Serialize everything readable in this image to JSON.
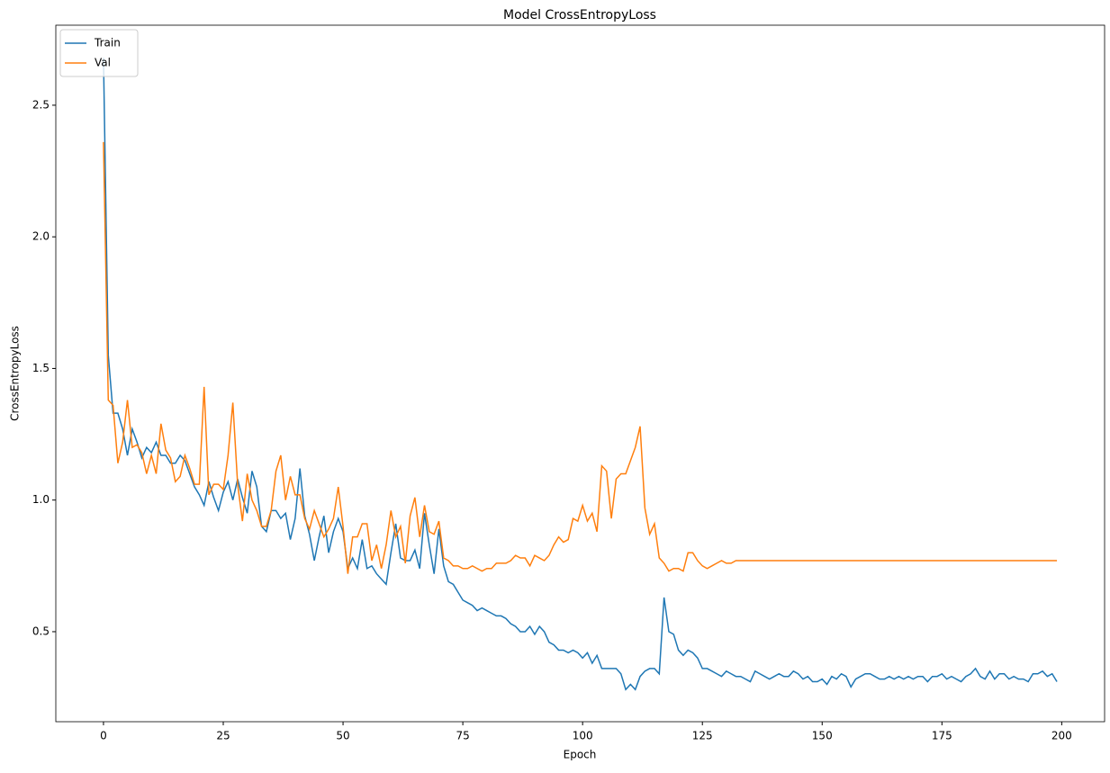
{
  "chart_data": {
    "type": "line",
    "title": "Model CrossEntropyLoss",
    "x_label": "Epoch",
    "y_label": "CrossEntropyLoss",
    "x": [
      0,
      1,
      2,
      3,
      4,
      5,
      6,
      7,
      8,
      9,
      10,
      11,
      12,
      13,
      14,
      15,
      16,
      17,
      18,
      19,
      20,
      21,
      22,
      23,
      24,
      25,
      26,
      27,
      28,
      29,
      30,
      31,
      32,
      33,
      34,
      35,
      36,
      37,
      38,
      39,
      40,
      41,
      42,
      43,
      44,
      45,
      46,
      47,
      48,
      49,
      50,
      51,
      52,
      53,
      54,
      55,
      56,
      57,
      58,
      59,
      60,
      61,
      62,
      63,
      64,
      65,
      66,
      67,
      68,
      69,
      70,
      71,
      72,
      73,
      74,
      75,
      76,
      77,
      78,
      79,
      80,
      81,
      82,
      83,
      84,
      85,
      86,
      87,
      88,
      89,
      90,
      91,
      92,
      93,
      94,
      95,
      96,
      97,
      98,
      99,
      100,
      101,
      102,
      103,
      104,
      105,
      106,
      107,
      108,
      109,
      110,
      111,
      112,
      113,
      114,
      115,
      116,
      117,
      118,
      119,
      120,
      121,
      122,
      123,
      124,
      125,
      126,
      127,
      128,
      129,
      130,
      131,
      132,
      133,
      134,
      135,
      136,
      137,
      138,
      139,
      140,
      141,
      142,
      143,
      144,
      145,
      146,
      147,
      148,
      149,
      150,
      151,
      152,
      153,
      154,
      155,
      156,
      157,
      158,
      159,
      160,
      161,
      162,
      163,
      164,
      165,
      166,
      167,
      168,
      169,
      170,
      171,
      172,
      173,
      174,
      175,
      176,
      177,
      178,
      179,
      180,
      181,
      182,
      183,
      184,
      185,
      186,
      187,
      188,
      189,
      190,
      191,
      192,
      193,
      194,
      195,
      196,
      197,
      198,
      199
    ],
    "series": [
      {
        "name": "Train",
        "color": "#1f77b4",
        "values": [
          2.68,
          1.55,
          1.33,
          1.33,
          1.27,
          1.17,
          1.27,
          1.22,
          1.16,
          1.2,
          1.18,
          1.22,
          1.17,
          1.17,
          1.14,
          1.14,
          1.17,
          1.15,
          1.1,
          1.05,
          1.02,
          0.98,
          1.07,
          1.01,
          0.96,
          1.03,
          1.07,
          1.0,
          1.08,
          1.01,
          0.95,
          1.11,
          1.05,
          0.9,
          0.88,
          0.96,
          0.96,
          0.93,
          0.95,
          0.85,
          0.93,
          1.12,
          0.94,
          0.87,
          0.77,
          0.86,
          0.94,
          0.8,
          0.88,
          0.93,
          0.88,
          0.74,
          0.78,
          0.74,
          0.85,
          0.74,
          0.75,
          0.72,
          0.7,
          0.68,
          0.8,
          0.91,
          0.78,
          0.77,
          0.77,
          0.81,
          0.74,
          0.95,
          0.83,
          0.72,
          0.89,
          0.75,
          0.69,
          0.68,
          0.65,
          0.62,
          0.61,
          0.6,
          0.58,
          0.59,
          0.58,
          0.57,
          0.56,
          0.56,
          0.55,
          0.53,
          0.52,
          0.5,
          0.5,
          0.52,
          0.49,
          0.52,
          0.5,
          0.46,
          0.45,
          0.43,
          0.43,
          0.42,
          0.43,
          0.42,
          0.4,
          0.42,
          0.38,
          0.41,
          0.36,
          0.36,
          0.36,
          0.36,
          0.34,
          0.28,
          0.3,
          0.28,
          0.33,
          0.35,
          0.36,
          0.36,
          0.34,
          0.63,
          0.5,
          0.49,
          0.43,
          0.41,
          0.43,
          0.42,
          0.4,
          0.36,
          0.36,
          0.35,
          0.34,
          0.33,
          0.35,
          0.34,
          0.33,
          0.33,
          0.32,
          0.31,
          0.35,
          0.34,
          0.33,
          0.32,
          0.33,
          0.34,
          0.33,
          0.33,
          0.35,
          0.34,
          0.32,
          0.33,
          0.31,
          0.31,
          0.32,
          0.3,
          0.33,
          0.32,
          0.34,
          0.33,
          0.29,
          0.32,
          0.33,
          0.34,
          0.34,
          0.33,
          0.32,
          0.32,
          0.33,
          0.32,
          0.33,
          0.32,
          0.33,
          0.32,
          0.33,
          0.33,
          0.31,
          0.33,
          0.33,
          0.34,
          0.32,
          0.33,
          0.32,
          0.31,
          0.33,
          0.34,
          0.36,
          0.33,
          0.32,
          0.35,
          0.32,
          0.34,
          0.34,
          0.32,
          0.33,
          0.32,
          0.32,
          0.31,
          0.34,
          0.34,
          0.35,
          0.33,
          0.34,
          0.31
        ]
      },
      {
        "name": "Val",
        "color": "#ff7f0e",
        "values": [
          2.36,
          1.38,
          1.36,
          1.14,
          1.22,
          1.38,
          1.2,
          1.21,
          1.18,
          1.1,
          1.17,
          1.1,
          1.29,
          1.19,
          1.16,
          1.07,
          1.09,
          1.17,
          1.12,
          1.06,
          1.06,
          1.43,
          1.02,
          1.06,
          1.06,
          1.04,
          1.17,
          1.37,
          1.06,
          0.92,
          1.1,
          1.0,
          0.96,
          0.9,
          0.9,
          0.96,
          1.11,
          1.17,
          1.0,
          1.09,
          1.02,
          1.02,
          0.93,
          0.89,
          0.96,
          0.91,
          0.86,
          0.89,
          0.93,
          1.05,
          0.9,
          0.72,
          0.86,
          0.86,
          0.91,
          0.91,
          0.77,
          0.83,
          0.74,
          0.83,
          0.96,
          0.86,
          0.9,
          0.76,
          0.94,
          1.01,
          0.86,
          0.98,
          0.88,
          0.87,
          0.92,
          0.78,
          0.77,
          0.75,
          0.75,
          0.74,
          0.74,
          0.75,
          0.74,
          0.73,
          0.74,
          0.74,
          0.76,
          0.76,
          0.76,
          0.77,
          0.79,
          0.78,
          0.78,
          0.75,
          0.79,
          0.78,
          0.77,
          0.79,
          0.83,
          0.86,
          0.84,
          0.85,
          0.93,
          0.92,
          0.98,
          0.92,
          0.95,
          0.88,
          1.13,
          1.11,
          0.93,
          1.08,
          1.1,
          1.1,
          1.15,
          1.2,
          1.28,
          0.97,
          0.87,
          0.91,
          0.78,
          0.76,
          0.73,
          0.74,
          0.74,
          0.73,
          0.8,
          0.8,
          0.77,
          0.75,
          0.74,
          0.75,
          0.76,
          0.77,
          0.76,
          0.76,
          0.77,
          0.77,
          0.77,
          0.77,
          0.77,
          0.77,
          0.77,
          0.77,
          0.77,
          0.77,
          0.77,
          0.77,
          0.77,
          0.77,
          0.77,
          0.77,
          0.77,
          0.77,
          0.77,
          0.77,
          0.77,
          0.77,
          0.77,
          0.77,
          0.77,
          0.77,
          0.77,
          0.77,
          0.77,
          0.77,
          0.77,
          0.77,
          0.77,
          0.77,
          0.77,
          0.77,
          0.77,
          0.77,
          0.77,
          0.77,
          0.77,
          0.77,
          0.77,
          0.77,
          0.77,
          0.77,
          0.77,
          0.77,
          0.77,
          0.77,
          0.77,
          0.77,
          0.77,
          0.77,
          0.77,
          0.77,
          0.77,
          0.77,
          0.77,
          0.77,
          0.77,
          0.77,
          0.77,
          0.77,
          0.77,
          0.77,
          0.77,
          0.77
        ]
      }
    ],
    "xlim": [
      -9.95,
      208.95
    ],
    "ylim": [
      0.158,
      2.804
    ],
    "xticks": [
      0,
      25,
      50,
      75,
      100,
      125,
      150,
      175,
      200
    ],
    "yticks": [
      0.5,
      {
        "value": 1,
        "label": "1.0"
      },
      1.5,
      {
        "value": 2,
        "label": "2.0"
      },
      2.5
    ],
    "legend": "upper left"
  }
}
